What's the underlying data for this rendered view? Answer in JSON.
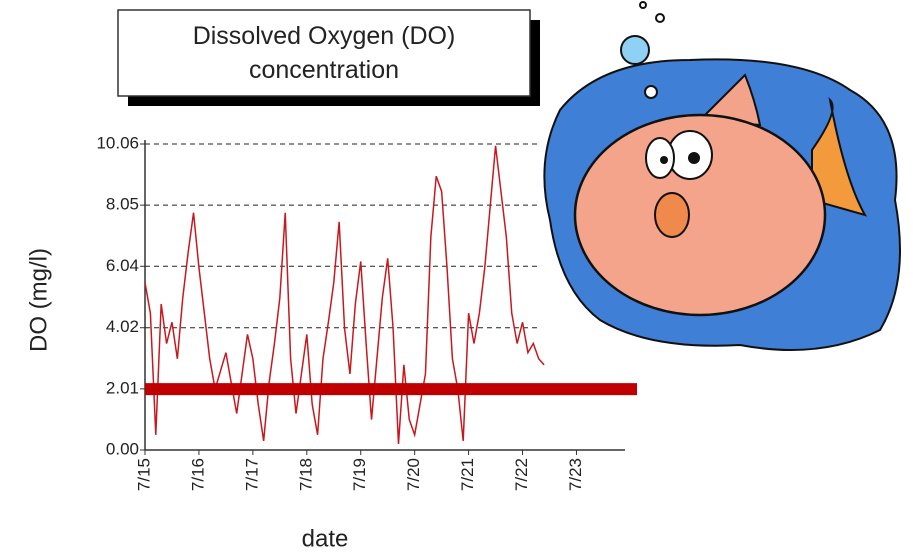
{
  "chart_data": {
    "type": "line",
    "title": "Dissolved Oxygen (DO) concentration",
    "x_label": "date",
    "y_label": "DO (mg/l)",
    "xlim": [
      0,
      8.9
    ],
    "ylim": [
      0,
      10.06
    ],
    "xticks": [
      {
        "value": 0,
        "label": "7/15"
      },
      {
        "value": 1,
        "label": "7/16"
      },
      {
        "value": 2,
        "label": "7/17"
      },
      {
        "value": 3,
        "label": "7/18"
      },
      {
        "value": 4,
        "label": "7/19"
      },
      {
        "value": 5,
        "label": "7/20"
      },
      {
        "value": 6,
        "label": "7/21"
      },
      {
        "value": 7,
        "label": "7/22"
      },
      {
        "value": 8,
        "label": "7/23"
      }
    ],
    "yticks": [
      {
        "value": 0,
        "label": "0.00"
      },
      {
        "value": 2.01,
        "label": "2.01"
      },
      {
        "value": 4.02,
        "label": "4.02"
      },
      {
        "value": 6.04,
        "label": "6.04"
      },
      {
        "value": 8.05,
        "label": "8.05"
      },
      {
        "value": 10.06,
        "label": "10.06"
      }
    ],
    "grid": true,
    "reference_line": {
      "value": 2,
      "color": "#c00000"
    },
    "series": [
      {
        "color": "#c8181e",
        "x": [
          0,
          0.1,
          0.2,
          0.3,
          0.4,
          0.5,
          0.6,
          0.7,
          0.8,
          0.9,
          1,
          1.1,
          1.2,
          1.3,
          1.4,
          1.5,
          1.6,
          1.7,
          1.8,
          1.9,
          2,
          2.1,
          2.2,
          2.3,
          2.4,
          2.5,
          2.6,
          2.7,
          2.8,
          2.9,
          3,
          3.1,
          3.2,
          3.3,
          3.4,
          3.5,
          3.6,
          3.7,
          3.8,
          3.9,
          4,
          4.1,
          4.2,
          4.3,
          4.4,
          4.5,
          4.6,
          4.7,
          4.8,
          4.9,
          5,
          5.1,
          5.2,
          5.3,
          5.4,
          5.5,
          5.6,
          5.7,
          5.8,
          5.9,
          6,
          6.1,
          6.2,
          6.3,
          6.4,
          6.5,
          6.6,
          6.7,
          6.8,
          6.9,
          7,
          7.1,
          7.2,
          7.3,
          7.4
        ],
        "values": [
          5.5,
          4.5,
          0.5,
          4.8,
          3.5,
          4.2,
          3.0,
          5.0,
          6.5,
          7.8,
          6.0,
          4.5,
          3.0,
          2.0,
          2.6,
          3.2,
          2.2,
          1.2,
          2.5,
          3.8,
          3.0,
          1.5,
          0.3,
          2.2,
          3.5,
          5.0,
          7.8,
          3.0,
          1.2,
          2.5,
          3.8,
          1.5,
          0.5,
          3.0,
          4.2,
          5.5,
          7.5,
          4.0,
          2.5,
          4.8,
          6.2,
          3.5,
          1.0,
          3.0,
          5.0,
          6.3,
          4.0,
          0.2,
          2.8,
          1.0,
          0.5,
          1.5,
          2.5,
          7.0,
          9.0,
          8.5,
          6.0,
          3.0,
          2.0,
          0.3,
          4.5,
          3.5,
          4.5,
          6.0,
          8.0,
          10.0,
          8.5,
          7.0,
          4.5,
          3.5,
          4.2,
          3.2,
          3.5,
          3.0,
          2.8
        ]
      }
    ]
  }
}
